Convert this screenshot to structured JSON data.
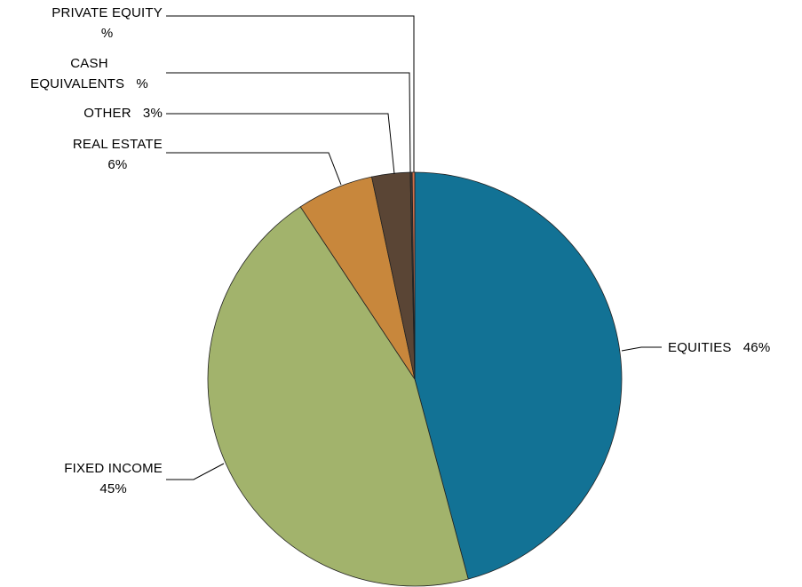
{
  "chart_data": {
    "type": "pie",
    "categories": [
      "EQUITIES",
      "FIXED INCOME",
      "REAL ESTATE",
      "OTHER",
      "CASH EQUIVALENTS",
      "PRIVATE EQUITY"
    ],
    "values": [
      46,
      45,
      6,
      3,
      0.15,
      0.2
    ],
    "value_labels": [
      "46%",
      "45%",
      "6%",
      "3%",
      "%",
      "%"
    ],
    "colors": [
      "#127295",
      "#a2b36c",
      "#c8873c",
      "#5a4535",
      "#3a3a3a",
      "#d0704a"
    ]
  }
}
